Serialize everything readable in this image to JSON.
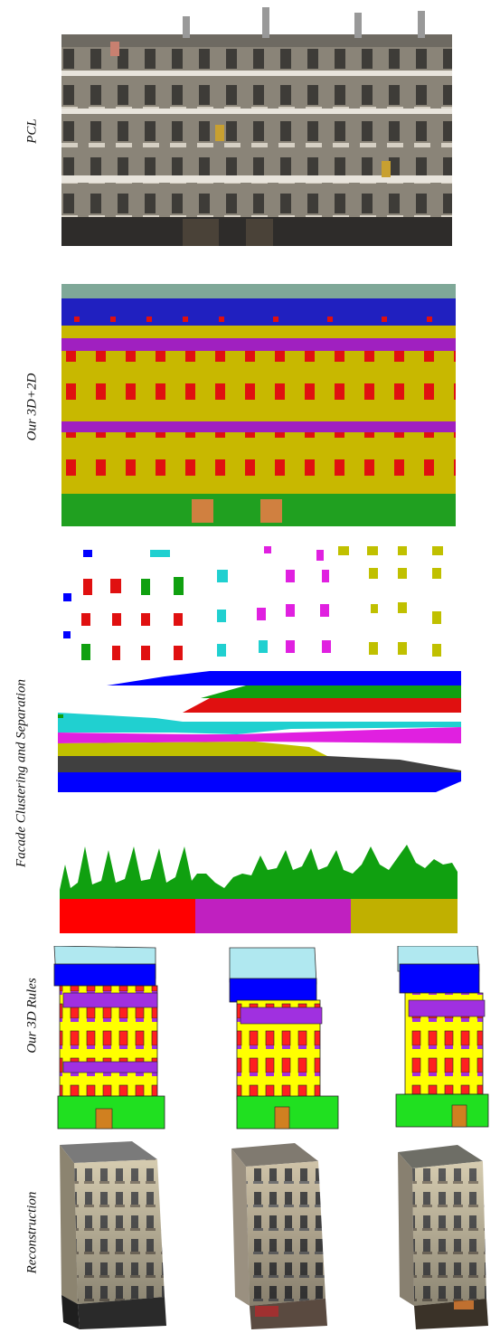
{
  "row_labels": {
    "pcl": "PCL",
    "our_3d2d": "Our 3D+2D",
    "facade": "Facade Clustering and Separation",
    "rules": "Our 3D Rules",
    "reconstruction": "Reconstruction"
  },
  "colors": {
    "wall": "#c8b800",
    "window": "#e01010",
    "balcony": "#a020c0",
    "roof": "#2020c0",
    "roof_top": "#7fa898",
    "shop": "#20a020",
    "rule_wall": "#ffff00",
    "rule_roof": "#0000ff",
    "rule_top": "#b0e8f0",
    "rule_window": "#ff2020",
    "rule_balcony": "#a030e0",
    "rule_shop": "#20e020",
    "rule_door": "#d08020",
    "cluster_cyan": "#20d0d0",
    "cluster_magenta": "#e020e0",
    "cluster_olive": "#c0c000",
    "cluster_green": "#10a010",
    "cluster_blue": "#0000ff",
    "cluster_dark": "#404040"
  }
}
